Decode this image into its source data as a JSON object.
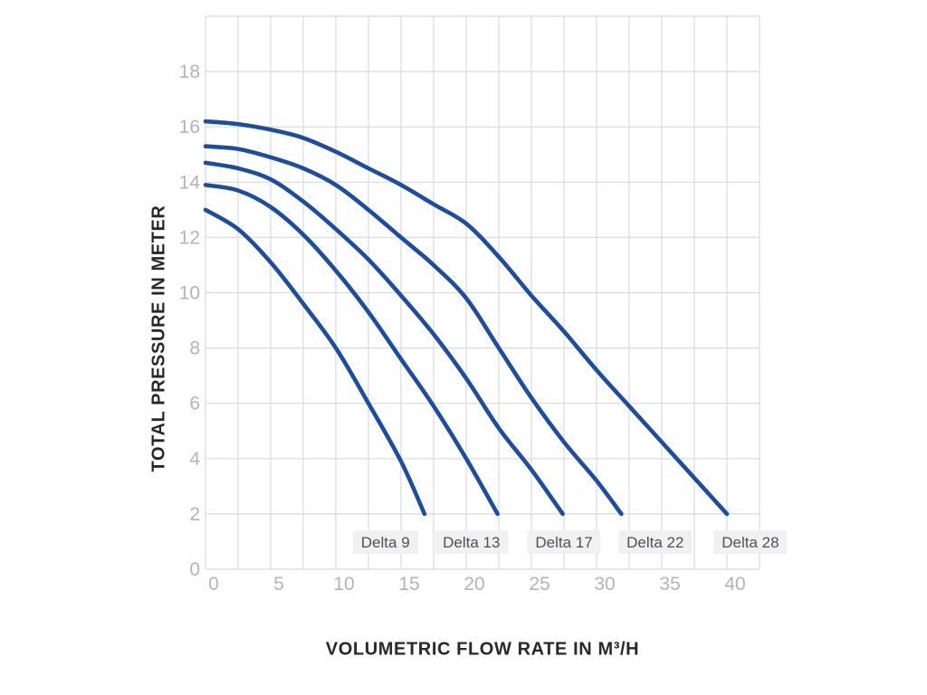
{
  "chart_data": {
    "type": "line",
    "title": "",
    "xlabel": "VOLUMETRIC FLOW RATE IN M³/H",
    "ylabel": "TOTAL PRESSURE IN METER",
    "xlim": [
      0,
      42.5
    ],
    "ylim": [
      0,
      20
    ],
    "x_tick_labels": [
      0,
      5,
      10,
      15,
      20,
      25,
      30,
      35,
      40
    ],
    "x_gridline_step": 2.5,
    "y_tick_labels": [
      0,
      2,
      4,
      6,
      8,
      10,
      12,
      14,
      16,
      18
    ],
    "y_gridline_step": 2,
    "grid": true,
    "legend_position": "inline-labels-below-curves",
    "colors": {
      "curve": "#1c4e9d",
      "grid": "#d9dadb",
      "tick_label": "#b3b4b7",
      "axis_title": "#28282a",
      "series_label_text": "#4f5156",
      "series_label_bg": "#f1f1f2"
    },
    "series": [
      {
        "name": "Delta 9",
        "label_x": 13.8,
        "points": [
          [
            0,
            13.0
          ],
          [
            2.5,
            12.3
          ],
          [
            5,
            11.1
          ],
          [
            7.5,
            9.6
          ],
          [
            10,
            8.0
          ],
          [
            12.5,
            6.0
          ],
          [
            15,
            3.9
          ],
          [
            16.8,
            2.0
          ]
        ]
      },
      {
        "name": "Delta 13",
        "label_x": 20.4,
        "points": [
          [
            0,
            13.9
          ],
          [
            2.5,
            13.7
          ],
          [
            5,
            13.1
          ],
          [
            7.5,
            12.1
          ],
          [
            10,
            10.8
          ],
          [
            12.5,
            9.3
          ],
          [
            15,
            7.6
          ],
          [
            17.5,
            5.9
          ],
          [
            20,
            4.0
          ],
          [
            22.4,
            2.0
          ]
        ]
      },
      {
        "name": "Delta 17",
        "label_x": 27.5,
        "points": [
          [
            0,
            14.7
          ],
          [
            2.5,
            14.5
          ],
          [
            5,
            14.1
          ],
          [
            7.5,
            13.3
          ],
          [
            10,
            12.3
          ],
          [
            12.5,
            11.2
          ],
          [
            15,
            9.9
          ],
          [
            17.5,
            8.5
          ],
          [
            20,
            6.9
          ],
          [
            22.5,
            5.1
          ],
          [
            25,
            3.6
          ],
          [
            27.4,
            2.0
          ]
        ]
      },
      {
        "name": "Delta 22",
        "label_x": 34.5,
        "points": [
          [
            0,
            15.3
          ],
          [
            2.5,
            15.2
          ],
          [
            5,
            14.9
          ],
          [
            7.5,
            14.5
          ],
          [
            10,
            13.9
          ],
          [
            12.5,
            13.0
          ],
          [
            15,
            12.0
          ],
          [
            17.5,
            11.0
          ],
          [
            20,
            9.8
          ],
          [
            22.5,
            8.0
          ],
          [
            25,
            6.2
          ],
          [
            27.5,
            4.6
          ],
          [
            30,
            3.2
          ],
          [
            31.9,
            2.0
          ]
        ]
      },
      {
        "name": "Delta 28",
        "label_x": 41.8,
        "points": [
          [
            0,
            16.2
          ],
          [
            2.5,
            16.1
          ],
          [
            5,
            15.9
          ],
          [
            7.5,
            15.6
          ],
          [
            10,
            15.1
          ],
          [
            12.5,
            14.5
          ],
          [
            15,
            13.9
          ],
          [
            17.5,
            13.2
          ],
          [
            20,
            12.5
          ],
          [
            22.5,
            11.3
          ],
          [
            25,
            9.9
          ],
          [
            27.5,
            8.6
          ],
          [
            30,
            7.2
          ],
          [
            32.5,
            5.9
          ],
          [
            35,
            4.6
          ],
          [
            37.5,
            3.3
          ],
          [
            40,
            2.0
          ]
        ]
      }
    ]
  }
}
